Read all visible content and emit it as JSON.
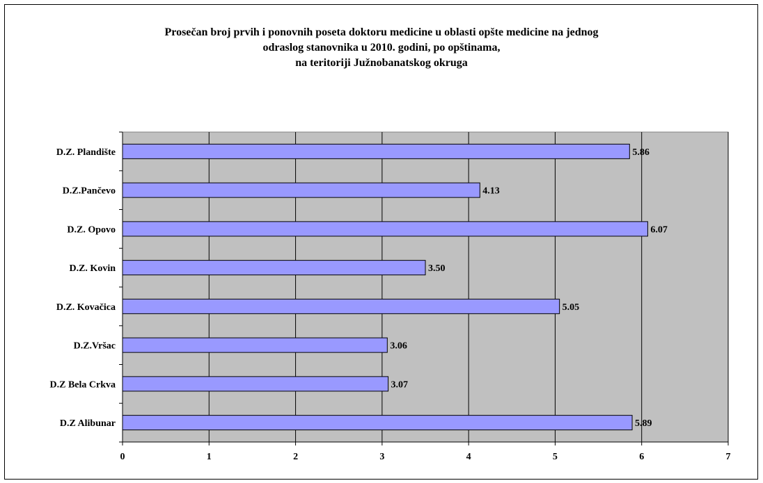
{
  "chart_data": {
    "type": "bar",
    "orientation": "horizontal",
    "title_lines": [
      "Prosečan broj prvih i ponovnih poseta doktoru medicine u oblasti opšte medicine na jednog",
      "odraslog stanovnika u 2010. godini, po opštinama,",
      "na teritoriji Južnobanatskog okruga"
    ],
    "categories": [
      "D.Z. Plandište",
      "D.Z.Pančevo",
      "D.Z. Opovo",
      "D.Z. Kovin",
      "D.Z. Kovačica",
      "D.Z.Vršac",
      "D.Z Bela Crkva",
      "D.Z Alibunar"
    ],
    "values": [
      5.86,
      4.13,
      6.07,
      3.5,
      5.05,
      3.06,
      3.07,
      5.89
    ],
    "value_labels": [
      "5.86",
      "4.13",
      "6.07",
      "3.50",
      "5.05",
      "3.06",
      "3.07",
      "5.89"
    ],
    "xlim": [
      0,
      7
    ],
    "x_ticks": [
      "0",
      "1",
      "2",
      "3",
      "4",
      "5",
      "6",
      "7"
    ],
    "grid": "vertical",
    "legend": "none",
    "colors": {
      "bar_fill": "#9999ff",
      "bar_stroke": "#000000",
      "plot_background": "#c0c0c0",
      "gridline": "#000000"
    }
  }
}
